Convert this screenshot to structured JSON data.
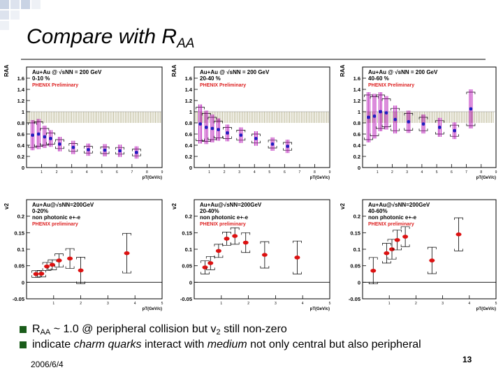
{
  "slide": {
    "title_main": "Compare with R",
    "title_sub": "AA",
    "footer_date": "2006/6/4",
    "page_number": "13"
  },
  "bullets": [
    {
      "pre": "R",
      "sub1": "AA",
      "mid": " ~ 1.0 @ peripheral collision but v",
      "sub2": "2",
      "post": " still non-zero"
    },
    {
      "pre": "indicate ",
      "em1": "charm quarks",
      "mid": " interact with ",
      "em2": "medium",
      "post": " not only central but also peripheral"
    }
  ],
  "colors": {
    "bullet": "#1a5c1a",
    "raa_marker": "#1f1fbf",
    "raa_error": "#b000b0",
    "v2_marker": "#dd1111",
    "band": "#b5b08a",
    "prelim": "#dd2222"
  },
  "chart_data": [
    {
      "type": "scatter",
      "id": "raa-0-10",
      "ylabel": "RAA",
      "xlabel": "pT(GeV/c)",
      "label_lines": [
        "Au+Au @ √sNN = 200 GeV",
        "0-10 %"
      ],
      "preliminary": "PHENIX Preliminary",
      "ylim": [
        0,
        1.8
      ],
      "xlim": [
        0,
        9
      ],
      "yticks": [
        0,
        0.2,
        0.4,
        0.6,
        0.8,
        1,
        1.2,
        1.4,
        1.6
      ],
      "xticks": [
        1,
        2,
        3,
        4,
        5,
        6,
        7,
        8,
        9
      ],
      "band": [
        0.8,
        1.0
      ],
      "points": [
        {
          "x": 0.4,
          "y": 0.58,
          "e": 0.22
        },
        {
          "x": 0.8,
          "y": 0.6,
          "e": 0.22
        },
        {
          "x": 1.2,
          "y": 0.55,
          "e": 0.15
        },
        {
          "x": 1.6,
          "y": 0.52,
          "e": 0.1
        },
        {
          "x": 2.2,
          "y": 0.42,
          "e": 0.08
        },
        {
          "x": 3.1,
          "y": 0.36,
          "e": 0.07
        },
        {
          "x": 4.1,
          "y": 0.32,
          "e": 0.06
        },
        {
          "x": 5.2,
          "y": 0.31,
          "e": 0.06
        },
        {
          "x": 6.2,
          "y": 0.3,
          "e": 0.06
        },
        {
          "x": 7.3,
          "y": 0.27,
          "e": 0.06
        }
      ]
    },
    {
      "type": "scatter",
      "id": "raa-20-40",
      "ylabel": "RAA",
      "xlabel": "pT(GeV/c)",
      "label_lines": [
        "Au+Au @ √sNN = 200 GeV",
        "20-40 %"
      ],
      "preliminary": "PHENIX Preliminary",
      "ylim": [
        0,
        1.8
      ],
      "xlim": [
        0,
        9
      ],
      "yticks": [
        0,
        0.2,
        0.4,
        0.6,
        0.8,
        1,
        1.2,
        1.4,
        1.6
      ],
      "xticks": [
        1,
        2,
        3,
        4,
        5,
        6,
        7,
        8,
        9
      ],
      "band": [
        0.8,
        1.0
      ],
      "points": [
        {
          "x": 0.4,
          "y": 0.78,
          "e": 0.3
        },
        {
          "x": 0.8,
          "y": 0.72,
          "e": 0.25
        },
        {
          "x": 1.2,
          "y": 0.7,
          "e": 0.2
        },
        {
          "x": 1.6,
          "y": 0.68,
          "e": 0.15
        },
        {
          "x": 2.2,
          "y": 0.62,
          "e": 0.1
        },
        {
          "x": 3.1,
          "y": 0.58,
          "e": 0.09
        },
        {
          "x": 4.1,
          "y": 0.52,
          "e": 0.08
        },
        {
          "x": 5.2,
          "y": 0.42,
          "e": 0.07
        },
        {
          "x": 6.2,
          "y": 0.38,
          "e": 0.07
        }
      ]
    },
    {
      "type": "scatter",
      "id": "raa-40-60",
      "ylabel": "RAA",
      "xlabel": "pT(GeV/c)",
      "label_lines": [
        "Au+Au @ √sNN = 200 GeV",
        "40-60 %"
      ],
      "preliminary": "PHENIX Preliminary",
      "ylim": [
        0,
        1.8
      ],
      "xlim": [
        0,
        9
      ],
      "yticks": [
        0,
        0.2,
        0.4,
        0.6,
        0.8,
        1,
        1.2,
        1.4,
        1.6
      ],
      "xticks": [
        1,
        2,
        3,
        4,
        5,
        6,
        7,
        8,
        9
      ],
      "band": [
        0.8,
        1.0
      ],
      "points": [
        {
          "x": 0.4,
          "y": 0.9,
          "e": 0.4
        },
        {
          "x": 0.8,
          "y": 0.92,
          "e": 0.35
        },
        {
          "x": 1.2,
          "y": 1.0,
          "e": 0.3
        },
        {
          "x": 1.6,
          "y": 0.98,
          "e": 0.25
        },
        {
          "x": 2.2,
          "y": 0.86,
          "e": 0.2
        },
        {
          "x": 3.1,
          "y": 0.82,
          "e": 0.15
        },
        {
          "x": 4.1,
          "y": 0.78,
          "e": 0.12
        },
        {
          "x": 5.2,
          "y": 0.72,
          "e": 0.12
        },
        {
          "x": 6.2,
          "y": 0.66,
          "e": 0.1
        },
        {
          "x": 7.3,
          "y": 1.05,
          "e": 0.3
        }
      ]
    },
    {
      "type": "scatter",
      "id": "v2-0-20",
      "ylabel": "v2",
      "xlabel": "pT(GeV/c)",
      "label_lines": [
        "Au+Au@√sNN=200GeV",
        "0-20%",
        "non photonic e+-e"
      ],
      "preliminary": "PHENIX preliminary",
      "ylim": [
        -0.05,
        0.25
      ],
      "xlim": [
        0,
        5
      ],
      "yticks": [
        -0.05,
        0,
        0.05,
        0.1,
        0.15,
        0.2
      ],
      "xticks": [
        1,
        2,
        3,
        4,
        5
      ],
      "points": [
        {
          "x": 0.35,
          "y": 0.025,
          "e": 0.01
        },
        {
          "x": 0.55,
          "y": 0.026,
          "e": 0.01
        },
        {
          "x": 0.75,
          "y": 0.048,
          "e": 0.012
        },
        {
          "x": 0.95,
          "y": 0.053,
          "e": 0.015
        },
        {
          "x": 1.2,
          "y": 0.066,
          "e": 0.02
        },
        {
          "x": 1.6,
          "y": 0.072,
          "e": 0.03
        },
        {
          "x": 2.0,
          "y": 0.036,
          "e": 0.04
        },
        {
          "x": 3.7,
          "y": 0.088,
          "e": 0.06
        }
      ]
    },
    {
      "type": "scatter",
      "id": "v2-20-40",
      "ylabel": "v2",
      "xlabel": "pT(GeV/c)",
      "label_lines": [
        "Au+Au@√sNN=200GeV",
        "20-40%",
        "non photonic e+-e"
      ],
      "preliminary": "PHENIX preliminary",
      "ylim": [
        -0.05,
        0.25
      ],
      "xlim": [
        0,
        5
      ],
      "yticks": [
        -0.05,
        0,
        0.05,
        0.1,
        0.15,
        0.2
      ],
      "xticks": [
        1,
        2,
        3,
        4,
        5
      ],
      "points": [
        {
          "x": 0.4,
          "y": 0.045,
          "e": 0.02
        },
        {
          "x": 0.6,
          "y": 0.058,
          "e": 0.02
        },
        {
          "x": 0.9,
          "y": 0.095,
          "e": 0.02
        },
        {
          "x": 1.2,
          "y": 0.132,
          "e": 0.02
        },
        {
          "x": 1.5,
          "y": 0.14,
          "e": 0.025
        },
        {
          "x": 1.9,
          "y": 0.12,
          "e": 0.03
        },
        {
          "x": 2.6,
          "y": 0.083,
          "e": 0.04
        },
        {
          "x": 3.8,
          "y": 0.075,
          "e": 0.05
        }
      ]
    },
    {
      "type": "scatter",
      "id": "v2-40-60",
      "ylabel": "v2",
      "xlabel": "pT(GeV/c)",
      "label_lines": [
        "Au+Au@√sNN=200GeV",
        "40-60%",
        "non photonic e+-e"
      ],
      "preliminary": "PHENIX preliminary",
      "ylim": [
        -0.05,
        0.25
      ],
      "xlim": [
        0,
        5
      ],
      "yticks": [
        -0.05,
        0,
        0.05,
        0.1,
        0.15,
        0.2
      ],
      "xticks": [
        1,
        2,
        3,
        4,
        5
      ],
      "points": [
        {
          "x": 0.4,
          "y": 0.035,
          "e": 0.04
        },
        {
          "x": 0.9,
          "y": 0.088,
          "e": 0.03
        },
        {
          "x": 1.1,
          "y": 0.1,
          "e": 0.03
        },
        {
          "x": 1.3,
          "y": 0.128,
          "e": 0.03
        },
        {
          "x": 1.6,
          "y": 0.138,
          "e": 0.03
        },
        {
          "x": 2.6,
          "y": 0.066,
          "e": 0.04
        },
        {
          "x": 3.6,
          "y": 0.145,
          "e": 0.05
        }
      ]
    }
  ]
}
